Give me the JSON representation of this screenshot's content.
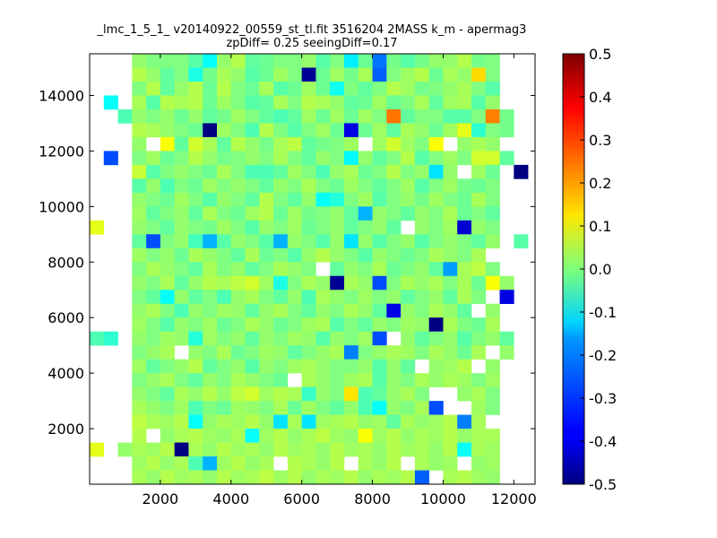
{
  "chart_data": {
    "type": "heatmap",
    "title": "_lmc_1_5_1_ v20140922_00559_st_tl.fit 3516204 2MASS k_m - apermag3",
    "subtitle": "zpDiff= 0.25 seeingDiff=0.17",
    "xlabel": "",
    "ylabel": "",
    "xlim": [
      0,
      12600
    ],
    "ylim": [
      0,
      15500
    ],
    "x_ticks": [
      2000,
      4000,
      6000,
      8000,
      10000,
      12000
    ],
    "y_ticks": [
      2000,
      4000,
      6000,
      8000,
      10000,
      12000,
      14000
    ],
    "grid": false,
    "colormap": "jet",
    "colorbar": {
      "min": -0.5,
      "max": 0.5,
      "ticks": [
        -0.5,
        -0.4,
        -0.3,
        -0.2,
        -0.1,
        0.0,
        0.1,
        0.2,
        0.3,
        0.4,
        0.5
      ]
    },
    "ncols": 31,
    "nrows": 31,
    "x_cell_origin": 0,
    "x_cell_width": 400,
    "y_cell_origin": 0,
    "y_cell_height": 500,
    "cells_note": "rows listed top (y=15000-15500) to bottom (y=0-500); null = no data",
    "cells": [
      [
        null,
        null,
        null,
        0.02,
        0.0,
        0.0,
        0.0,
        -0.04,
        -0.12,
        0.02,
        0.05,
        -0.03,
        -0.02,
        0.0,
        0.0,
        0.02,
        -0.04,
        0.0,
        -0.14,
        -0.02,
        -0.26,
        -0.01,
        -0.04,
        -0.01,
        0.02,
        0.02,
        0.05,
        -0.01,
        0.0,
        null,
        null
      ],
      [
        null,
        null,
        null,
        0.05,
        0.02,
        -0.03,
        0.0,
        -0.1,
        -0.01,
        0.04,
        0.02,
        -0.04,
        -0.02,
        0.03,
        0.0,
        -0.48,
        -0.02,
        0.03,
        -0.01,
        0.04,
        -0.28,
        0.0,
        0.03,
        0.05,
        -0.02,
        0.04,
        0.02,
        0.16,
        0.0,
        null,
        null
      ],
      [
        null,
        null,
        null,
        0.0,
        0.05,
        -0.03,
        0.02,
        0.05,
        -0.02,
        0.05,
        0.0,
        -0.02,
        0.04,
        -0.04,
        -0.02,
        0.03,
        -0.02,
        -0.11,
        0.0,
        -0.03,
        0.0,
        0.05,
        0.03,
        -0.01,
        0.0,
        0.02,
        0.04,
        0.0,
        -0.04,
        null,
        null
      ],
      [
        null,
        -0.12,
        null,
        0.04,
        -0.04,
        0.05,
        0.04,
        0.05,
        -0.02,
        0.03,
        0.0,
        -0.04,
        -0.03,
        0.04,
        0.0,
        0.05,
        0.04,
        0.02,
        -0.03,
        -0.02,
        0.03,
        -0.02,
        0.0,
        0.04,
        -0.03,
        0.03,
        0.04,
        -0.04,
        0.02,
        null,
        null
      ],
      [
        null,
        null,
        -0.05,
        0.02,
        0.0,
        0.02,
        -0.02,
        0.02,
        -0.03,
        -0.01,
        0.03,
        0.0,
        -0.03,
        -0.05,
        -0.03,
        0.03,
        -0.02,
        0.03,
        -0.02,
        0.03,
        0.0,
        0.26,
        -0.03,
        0.0,
        0.0,
        -0.04,
        -0.04,
        0.0,
        0.25,
        -0.01,
        null
      ],
      [
        null,
        null,
        null,
        0.05,
        0.04,
        0.02,
        0.0,
        -0.02,
        -0.5,
        0.03,
        0.0,
        -0.05,
        0.05,
        0.0,
        -0.04,
        0.0,
        0.03,
        -0.02,
        -0.4,
        -0.02,
        0.03,
        -0.03,
        0.04,
        0.02,
        -0.02,
        0.03,
        0.1,
        -0.08,
        0.0,
        -0.01,
        null
      ],
      [
        null,
        null,
        null,
        0.02,
        null,
        0.12,
        -0.03,
        0.08,
        0.04,
        -0.03,
        0.05,
        0.02,
        -0.01,
        0.04,
        0.06,
        -0.03,
        -0.01,
        0.0,
        0.03,
        null,
        0.03,
        0.08,
        0.03,
        0.0,
        0.12,
        null,
        0.02,
        0.04,
        0.02,
        null,
        null
      ],
      [
        null,
        -0.3,
        null,
        0.0,
        0.03,
        -0.02,
        0.0,
        0.05,
        0.02,
        -0.01,
        0.0,
        0.02,
        0.0,
        0.04,
        0.0,
        -0.03,
        0.02,
        0.0,
        -0.13,
        0.02,
        -0.03,
        0.0,
        0.05,
        -0.04,
        0.0,
        0.03,
        0.0,
        0.08,
        0.08,
        -0.03,
        null
      ],
      [
        null,
        null,
        null,
        0.07,
        -0.04,
        0.0,
        0.02,
        0.0,
        -0.02,
        0.04,
        0.0,
        -0.05,
        -0.05,
        -0.03,
        0.03,
        0.0,
        -0.05,
        0.02,
        0.04,
        -0.02,
        0.0,
        0.05,
        0.0,
        0.02,
        -0.15,
        0.02,
        null,
        0.03,
        -0.02,
        null,
        -0.5
      ],
      [
        null,
        null,
        null,
        -0.04,
        0.02,
        -0.05,
        0.0,
        -0.02,
        0.03,
        0.0,
        0.02,
        0.0,
        -0.03,
        0.02,
        0.0,
        0.04,
        0.0,
        -0.02,
        0.03,
        0.0,
        -0.03,
        0.0,
        0.03,
        -0.04,
        0.0,
        0.03,
        -0.01,
        -0.02,
        0.0,
        null,
        null
      ],
      [
        null,
        null,
        null,
        0.02,
        0.0,
        -0.02,
        0.03,
        0.0,
        -0.04,
        0.02,
        0.0,
        -0.03,
        0.05,
        0.0,
        -0.03,
        0.02,
        -0.12,
        -0.09,
        0.0,
        0.03,
        -0.04,
        0.0,
        0.02,
        -0.01,
        0.03,
        0.0,
        -0.02,
        0.04,
        0.0,
        null,
        null
      ],
      [
        null,
        null,
        null,
        0.03,
        -0.03,
        0.0,
        0.02,
        -0.03,
        0.04,
        0.0,
        -0.02,
        0.03,
        0.05,
        -0.02,
        0.03,
        -0.01,
        0.0,
        0.02,
        -0.03,
        -0.2,
        0.02,
        0.0,
        -0.03,
        0.02,
        0.0,
        0.04,
        -0.02,
        0.0,
        -0.03,
        null,
        null
      ],
      [
        0.1,
        null,
        null,
        0.02,
        0.0,
        -0.03,
        0.02,
        0.0,
        -0.01,
        0.03,
        0.0,
        -0.04,
        0.02,
        0.0,
        0.03,
        -0.02,
        0.0,
        0.02,
        -0.03,
        0.0,
        0.02,
        -0.03,
        null,
        0.02,
        0.0,
        0.03,
        -0.42,
        0.02,
        0.0,
        null,
        null
      ],
      [
        null,
        null,
        null,
        -0.03,
        -0.3,
        0.0,
        0.02,
        -0.06,
        -0.2,
        -0.04,
        0.02,
        0.0,
        -0.04,
        -0.2,
        0.02,
        0.0,
        -0.04,
        0.02,
        -0.15,
        0.02,
        -0.04,
        0.0,
        0.02,
        -0.04,
        0.0,
        0.02,
        0.0,
        -0.03,
        0.02,
        null,
        -0.04
      ],
      [
        null,
        null,
        null,
        0.03,
        0.0,
        0.02,
        -0.02,
        0.04,
        0.02,
        0.0,
        -0.03,
        0.04,
        -0.02,
        0.0,
        -0.04,
        0.02,
        0.05,
        0.02,
        0.0,
        -0.04,
        0.02,
        0.0,
        -0.02,
        0.0,
        0.04,
        0.02,
        0.0,
        0.04,
        null,
        null,
        null
      ],
      [
        null,
        null,
        null,
        0.0,
        0.04,
        0.02,
        0.0,
        -0.03,
        0.04,
        0.0,
        0.02,
        -0.03,
        0.0,
        0.04,
        0.02,
        0.0,
        null,
        -0.03,
        0.02,
        0.0,
        0.04,
        -0.02,
        0.0,
        0.02,
        -0.03,
        -0.22,
        0.04,
        0.06,
        0.0,
        null,
        null
      ],
      [
        null,
        null,
        null,
        0.02,
        0.0,
        0.04,
        -0.03,
        0.02,
        0.05,
        0.04,
        0.06,
        0.08,
        0.03,
        -0.1,
        0.0,
        0.04,
        0.02,
        -0.48,
        0.04,
        0.02,
        -0.3,
        0.0,
        0.04,
        0.02,
        0.04,
        0.0,
        0.04,
        -0.02,
        0.12,
        0.02,
        null
      ],
      [
        null,
        null,
        null,
        0.0,
        -0.03,
        -0.12,
        0.02,
        -0.03,
        0.0,
        -0.05,
        0.02,
        0.04,
        0.0,
        -0.03,
        0.02,
        -0.05,
        0.04,
        0.02,
        0.0,
        0.03,
        0.0,
        0.02,
        -0.03,
        0.0,
        0.02,
        -0.03,
        0.04,
        0.0,
        null,
        -0.4,
        null
      ],
      [
        null,
        null,
        null,
        0.02,
        0.04,
        0.0,
        -0.05,
        0.02,
        0.0,
        0.03,
        0.02,
        -0.03,
        0.02,
        0.04,
        0.0,
        -0.03,
        0.02,
        0.0,
        0.04,
        0.02,
        -0.03,
        -0.4,
        0.02,
        0.0,
        0.04,
        0.02,
        -0.03,
        null,
        0.02,
        null,
        null
      ],
      [
        null,
        null,
        null,
        0.03,
        0.0,
        -0.04,
        0.02,
        0.0,
        0.03,
        -0.02,
        0.0,
        0.04,
        0.02,
        -0.02,
        0.0,
        0.03,
        0.04,
        -0.04,
        0.0,
        -0.03,
        0.02,
        0.0,
        0.03,
        0.02,
        -0.5,
        0.04,
        0.0,
        -0.02,
        0.04,
        null,
        null
      ],
      [
        -0.05,
        -0.08,
        null,
        0.02,
        0.0,
        0.03,
        0.02,
        -0.09,
        0.03,
        0.0,
        0.02,
        -0.03,
        0.02,
        0.0,
        0.03,
        0.02,
        -0.04,
        0.02,
        0.0,
        0.03,
        -0.3,
        null,
        0.02,
        -0.03,
        0.0,
        0.02,
        -0.04,
        0.0,
        0.02,
        -0.03,
        null
      ],
      [
        null,
        null,
        null,
        0.0,
        0.02,
        0.04,
        null,
        0.02,
        0.0,
        0.04,
        -0.02,
        0.0,
        0.03,
        0.02,
        -0.03,
        0.0,
        0.02,
        0.04,
        -0.25,
        0.0,
        0.02,
        0.04,
        0.03,
        0.0,
        0.04,
        0.02,
        -0.02,
        0.04,
        null,
        0.02,
        null
      ],
      [
        null,
        null,
        null,
        0.03,
        -0.03,
        0.0,
        0.02,
        0.05,
        -0.03,
        0.0,
        0.02,
        -0.04,
        0.02,
        0.0,
        0.03,
        0.04,
        0.02,
        0.0,
        0.0,
        0.02,
        -0.04,
        0.02,
        -0.03,
        null,
        0.02,
        0.03,
        0.05,
        null,
        0.02,
        null,
        null
      ],
      [
        null,
        null,
        null,
        0.0,
        0.02,
        0.04,
        0.0,
        -0.03,
        0.02,
        0.0,
        0.04,
        0.02,
        0.0,
        -0.02,
        null,
        0.04,
        0.02,
        0.0,
        0.03,
        0.04,
        -0.04,
        0.02,
        0.0,
        0.04,
        0.02,
        0.04,
        0.03,
        0.0,
        0.03,
        null,
        null
      ],
      [
        null,
        null,
        null,
        0.02,
        0.0,
        -0.03,
        0.04,
        0.02,
        0.05,
        0.02,
        0.06,
        0.08,
        0.03,
        0.05,
        0.04,
        -0.07,
        0.02,
        0.0,
        0.15,
        -0.05,
        -0.03,
        0.02,
        0.04,
        0.0,
        null,
        null,
        0.02,
        0.04,
        0.0,
        null,
        null
      ],
      [
        null,
        null,
        null,
        0.04,
        0.02,
        0.0,
        0.03,
        -0.05,
        0.0,
        -0.02,
        0.03,
        0.02,
        0.0,
        0.04,
        -0.02,
        0.03,
        0.0,
        -0.03,
        0.02,
        -0.05,
        -0.12,
        0.02,
        0.0,
        0.04,
        -0.3,
        null,
        null,
        0.03,
        0.0,
        null,
        null
      ],
      [
        null,
        null,
        null,
        0.06,
        0.04,
        0.03,
        0.05,
        -0.12,
        0.02,
        0.04,
        0.03,
        0.05,
        0.02,
        -0.15,
        0.04,
        -0.15,
        0.03,
        0.04,
        0.05,
        0.02,
        0.03,
        -0.03,
        0.04,
        0.02,
        0.03,
        0.05,
        -0.25,
        0.04,
        null,
        null,
        null
      ],
      [
        null,
        null,
        null,
        0.05,
        null,
        0.02,
        0.04,
        0.05,
        0.03,
        0.02,
        0.04,
        -0.12,
        0.03,
        0.05,
        0.02,
        0.04,
        0.06,
        0.03,
        0.02,
        0.12,
        0.03,
        0.05,
        0.02,
        0.04,
        0.03,
        0.05,
        0.02,
        0.04,
        0.04,
        null,
        null
      ],
      [
        0.1,
        null,
        0.02,
        0.04,
        0.03,
        0.05,
        -0.5,
        0.04,
        0.02,
        0.05,
        0.03,
        0.04,
        0.02,
        0.05,
        0.03,
        0.04,
        0.02,
        0.05,
        0.03,
        0.04,
        0.02,
        0.05,
        0.03,
        0.04,
        0.02,
        0.05,
        -0.12,
        0.04,
        0.03,
        null,
        null
      ],
      [
        null,
        null,
        null,
        0.03,
        0.05,
        0.02,
        0.04,
        -0.05,
        -0.2,
        0.03,
        0.05,
        0.02,
        0.04,
        null,
        0.05,
        0.04,
        0.02,
        0.05,
        null,
        0.04,
        0.02,
        0.05,
        null,
        0.04,
        0.02,
        0.03,
        null,
        0.02,
        0.03,
        null,
        null
      ],
      [
        null,
        null,
        null,
        0.04,
        0.02,
        0.05,
        0.03,
        0.04,
        0.02,
        0.05,
        0.03,
        0.04,
        0.06,
        0.03,
        0.05,
        0.02,
        0.04,
        0.03,
        0.05,
        0.02,
        0.04,
        0.03,
        0.05,
        -0.28,
        null,
        0.04,
        0.05,
        0.03,
        0.02,
        null,
        null
      ]
    ]
  }
}
